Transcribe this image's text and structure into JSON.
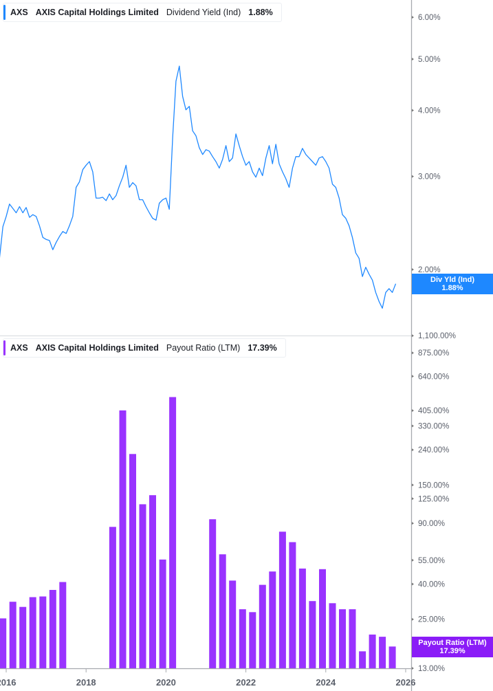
{
  "top_legend": {
    "ticker": "AXS",
    "company": "AXIS Capital Holdings Limited",
    "metric": "Dividend Yield (Ind)",
    "value": "1.88%"
  },
  "bottom_legend": {
    "ticker": "AXS",
    "company": "AXIS Capital Holdings Limited",
    "metric": "Payout Ratio (LTM)",
    "value": "17.39%"
  },
  "top_flag": {
    "label": "Div Yld (Ind)",
    "value": "1.88%"
  },
  "bottom_flag": {
    "label": "Payout Ratio (LTM)",
    "value": "17.39%"
  },
  "chart_data": [
    {
      "type": "line",
      "scale": "log",
      "series_color": "#1e88ff",
      "ylim": [
        1.5,
        6.5
      ],
      "y_ticks": [
        "6.00%",
        "5.00%",
        "4.00%",
        "3.00%",
        "2.00%"
      ],
      "y_tick_values": [
        6,
        5,
        4,
        3,
        2
      ],
      "x": [
        "2015-11",
        "2015-12",
        "2016-01",
        "2016-02",
        "2016-03",
        "2016-04",
        "2016-05",
        "2016-06",
        "2016-07",
        "2016-08",
        "2016-09",
        "2016-10",
        "2016-11",
        "2016-12",
        "2017-01",
        "2017-02",
        "2017-03",
        "2017-04",
        "2017-05",
        "2017-06",
        "2017-07",
        "2017-08",
        "2017-09",
        "2017-10",
        "2017-11",
        "2017-12",
        "2018-01",
        "2018-02",
        "2018-03",
        "2018-04",
        "2018-05",
        "2018-06",
        "2018-07",
        "2018-08",
        "2018-09",
        "2018-10",
        "2018-11",
        "2018-12",
        "2019-01",
        "2019-02",
        "2019-03",
        "2019-04",
        "2019-05",
        "2019-06",
        "2019-07",
        "2019-08",
        "2019-09",
        "2019-10",
        "2019-11",
        "2019-12",
        "2020-01",
        "2020-02",
        "2020-03",
        "2020-04",
        "2020-05",
        "2020-06",
        "2020-07",
        "2020-08",
        "2020-09",
        "2020-10",
        "2020-11",
        "2020-12",
        "2021-01",
        "2021-02",
        "2021-03",
        "2021-04",
        "2021-05",
        "2021-06",
        "2021-07",
        "2021-08",
        "2021-09",
        "2021-10",
        "2021-11",
        "2021-12",
        "2022-01",
        "2022-02",
        "2022-03",
        "2022-04",
        "2022-05",
        "2022-06",
        "2022-07",
        "2022-08",
        "2022-09",
        "2022-10",
        "2022-11",
        "2022-12",
        "2023-01",
        "2023-02",
        "2023-03",
        "2023-04",
        "2023-05",
        "2023-06",
        "2023-07",
        "2023-08",
        "2023-09",
        "2023-10",
        "2023-11",
        "2023-12",
        "2024-01",
        "2024-02",
        "2024-03",
        "2024-04",
        "2024-05",
        "2024-06",
        "2024-07",
        "2024-08",
        "2024-09",
        "2024-10",
        "2024-11",
        "2024-12",
        "2025-01",
        "2025-02",
        "2025-03",
        "2025-04",
        "2025-05",
        "2025-06",
        "2025-07",
        "2025-08",
        "2025-09",
        "2025-10"
      ],
      "values": [
        2.1,
        2.41,
        2.52,
        2.66,
        2.61,
        2.56,
        2.63,
        2.56,
        2.62,
        2.51,
        2.54,
        2.52,
        2.42,
        2.3,
        2.28,
        2.27,
        2.18,
        2.25,
        2.31,
        2.36,
        2.34,
        2.42,
        2.52,
        2.86,
        2.93,
        3.09,
        3.15,
        3.2,
        3.06,
        2.73,
        2.73,
        2.74,
        2.7,
        2.78,
        2.71,
        2.76,
        2.88,
        2.99,
        3.15,
        2.86,
        2.92,
        2.88,
        2.71,
        2.71,
        2.63,
        2.56,
        2.5,
        2.48,
        2.67,
        2.71,
        2.73,
        2.6,
        3.55,
        4.54,
        4.85,
        4.25,
        4.01,
        4.07,
        3.66,
        3.58,
        3.4,
        3.3,
        3.37,
        3.35,
        3.27,
        3.2,
        3.11,
        3.23,
        3.43,
        3.2,
        3.25,
        3.61,
        3.43,
        3.27,
        3.15,
        3.2,
        3.06,
        2.99,
        3.11,
        3.01,
        3.25,
        3.43,
        3.17,
        3.45,
        3.17,
        3.06,
        2.97,
        2.86,
        3.11,
        3.27,
        3.27,
        3.39,
        3.3,
        3.25,
        3.2,
        3.15,
        3.25,
        3.27,
        3.2,
        3.11,
        2.9,
        2.86,
        2.73,
        2.54,
        2.5,
        2.42,
        2.3,
        2.15,
        2.1,
        1.94,
        2.02,
        1.96,
        1.91,
        1.81,
        1.74,
        1.69,
        1.81,
        1.84,
        1.81,
        1.88
      ]
    },
    {
      "type": "bar",
      "scale": "log",
      "series_color": "#9933ff",
      "ylim": [
        13,
        1100
      ],
      "y_ticks": [
        "1,100.00%",
        "875.00%",
        "640.00%",
        "405.00%",
        "330.00%",
        "240.00%",
        "150.00%",
        "125.00%",
        "90.00%",
        "55.00%",
        "40.00%",
        "25.00%",
        "17.00%",
        "13.00%"
      ],
      "y_tick_values": [
        1100,
        875,
        640,
        405,
        330,
        240,
        150,
        125,
        90,
        55,
        40,
        25,
        17,
        13
      ],
      "x_ticks": [
        "2016",
        "2018",
        "2020",
        "2022",
        "2024",
        "2026"
      ],
      "categories": [
        "2015-12",
        "2016-03",
        "2016-06",
        "2016-09",
        "2016-12",
        "2017-03",
        "2017-06",
        "2017-09",
        "2017-12",
        "2018-03",
        "2018-06",
        "2018-09",
        "2018-12",
        "2019-03",
        "2019-06",
        "2019-09",
        "2019-12",
        "2020-03",
        "2020-06",
        "2020-09",
        "2020-12",
        "2021-03",
        "2021-06",
        "2021-09",
        "2021-12",
        "2022-03",
        "2022-06",
        "2022-09",
        "2022-12",
        "2023-03",
        "2023-06",
        "2023-09",
        "2023-12",
        "2024-03",
        "2024-06",
        "2024-09",
        "2024-12",
        "2025-03",
        "2025-06",
        "2025-09"
      ],
      "values": [
        25.3,
        31.6,
        29.5,
        33.6,
        33.9,
        37.0,
        41.1,
        null,
        null,
        null,
        null,
        85.8,
        406,
        227,
        116,
        131,
        55.5,
        485,
        null,
        null,
        null,
        95,
        59.5,
        41.9,
        28.6,
        27.5,
        39.6,
        47.3,
        80.5,
        70,
        49.2,
        31.9,
        48.8,
        31,
        28.6,
        28.6,
        16.3,
        20.4,
        19.8,
        17.39
      ]
    }
  ]
}
